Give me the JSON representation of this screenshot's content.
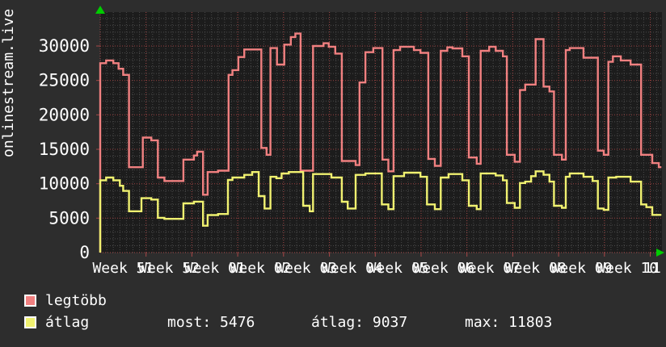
{
  "window": {
    "background": "#2d2d2d",
    "plot_background": "#1c1c1c"
  },
  "colors": {
    "text": "#ffffff",
    "grid_minor": "#4a4a4a",
    "grid_major": "#9c4040",
    "axis": "#a84747",
    "arrow": "#00cc00",
    "series_legtobb": "#f08080",
    "series_atlag": "#f0f170"
  },
  "y_axis_title": "onlinestream.live",
  "legend": {
    "items": [
      {
        "label": "legtöbb",
        "color": "#f08080"
      },
      {
        "label": "átlag",
        "color": "#f0f170"
      }
    ],
    "stats": {
      "most": "most: 5476",
      "atlag": "átlag: 9037",
      "max": "max: 11803"
    }
  },
  "chart_data": {
    "type": "line",
    "style": "rrdtool-step",
    "title": "",
    "ylabel": "onlinestream.live",
    "xlabel": "",
    "grid": true,
    "ylim": [
      0,
      34900
    ],
    "y_ticks": [
      0,
      5000,
      10000,
      15000,
      20000,
      25000,
      30000
    ],
    "y_minor_step": 1000,
    "x_week_labels": [
      "Week 51",
      "Week 52",
      "Week 01",
      "Week 02",
      "Week 03",
      "Week 04",
      "Week 05",
      "Week 06",
      "Week 07",
      "Week 08",
      "Week 09",
      "Week 10"
    ],
    "x_edge_label": "11",
    "x_unit": "days_since_start_week51",
    "summary": {
      "most": 5476,
      "atlag": 9037,
      "max": 11803
    },
    "series": [
      {
        "name": "legtöbb",
        "color": "#f08080",
        "points": [
          [
            0,
            27500
          ],
          [
            0.9,
            27900
          ],
          [
            2.0,
            27500
          ],
          [
            2.8,
            26700
          ],
          [
            3.5,
            25800
          ],
          [
            4.4,
            12400
          ],
          [
            6.5,
            16700
          ],
          [
            7.8,
            16300
          ],
          [
            8.8,
            10900
          ],
          [
            9.8,
            10400
          ],
          [
            12.7,
            13500
          ],
          [
            14.3,
            14100
          ],
          [
            14.8,
            14650
          ],
          [
            15.7,
            8400
          ],
          [
            16.4,
            11700
          ],
          [
            18.0,
            11900
          ],
          [
            19.6,
            25800
          ],
          [
            20.2,
            26500
          ],
          [
            21.1,
            28400
          ],
          [
            22.0,
            29500
          ],
          [
            24.6,
            15200
          ],
          [
            25.4,
            14200
          ],
          [
            26.0,
            29700
          ],
          [
            27.0,
            27300
          ],
          [
            28.1,
            30200
          ],
          [
            29.1,
            31300
          ],
          [
            29.8,
            31800
          ],
          [
            30.6,
            11900
          ],
          [
            32.5,
            30000
          ],
          [
            34.1,
            30400
          ],
          [
            34.9,
            29900
          ],
          [
            35.9,
            28900
          ],
          [
            36.9,
            13300
          ],
          [
            39.0,
            12700
          ],
          [
            39.6,
            24700
          ],
          [
            40.5,
            29100
          ],
          [
            41.7,
            29700
          ],
          [
            43.1,
            13500
          ],
          [
            44.0,
            11800
          ],
          [
            44.8,
            29400
          ],
          [
            45.8,
            29900
          ],
          [
            47.9,
            29400
          ],
          [
            48.9,
            29000
          ],
          [
            50.1,
            13600
          ],
          [
            51.1,
            12600
          ],
          [
            52.0,
            29300
          ],
          [
            53.0,
            29800
          ],
          [
            53.8,
            29650
          ],
          [
            55.3,
            28500
          ],
          [
            56.3,
            13800
          ],
          [
            57.5,
            12900
          ],
          [
            58.1,
            29300
          ],
          [
            59.4,
            29900
          ],
          [
            60.4,
            29300
          ],
          [
            61.5,
            28500
          ],
          [
            62.1,
            14200
          ],
          [
            63.3,
            13200
          ],
          [
            64.1,
            23600
          ],
          [
            64.9,
            24400
          ],
          [
            66.5,
            31000
          ],
          [
            67.7,
            24100
          ],
          [
            68.6,
            23400
          ],
          [
            69.3,
            14200
          ],
          [
            70.5,
            13500
          ],
          [
            71.1,
            29400
          ],
          [
            71.7,
            29700
          ],
          [
            73.8,
            28300
          ],
          [
            76.0,
            14800
          ],
          [
            76.9,
            14200
          ],
          [
            77.6,
            27700
          ],
          [
            78.3,
            28500
          ],
          [
            79.5,
            27900
          ],
          [
            81.0,
            27300
          ],
          [
            82.6,
            14200
          ],
          [
            84.3,
            13000
          ],
          [
            85.3,
            12400
          ],
          [
            85.7,
            12400
          ]
        ]
      },
      {
        "name": "átlag",
        "color": "#f0f170",
        "points": [
          [
            0,
            10500
          ],
          [
            0.9,
            10900
          ],
          [
            2.0,
            10500
          ],
          [
            3.0,
            9700
          ],
          [
            3.5,
            8950
          ],
          [
            4.4,
            6000
          ],
          [
            6.3,
            7900
          ],
          [
            7.8,
            7700
          ],
          [
            8.8,
            5050
          ],
          [
            9.8,
            4900
          ],
          [
            12.7,
            7150
          ],
          [
            14.3,
            7400
          ],
          [
            15.7,
            3900
          ],
          [
            16.4,
            5450
          ],
          [
            18.0,
            5600
          ],
          [
            19.5,
            10550
          ],
          [
            20.2,
            10900
          ],
          [
            22.0,
            11280
          ],
          [
            23.2,
            11700
          ],
          [
            24.2,
            8200
          ],
          [
            25.1,
            6400
          ],
          [
            26.0,
            11000
          ],
          [
            26.9,
            10800
          ],
          [
            27.7,
            11480
          ],
          [
            28.8,
            11700
          ],
          [
            31.0,
            6800
          ],
          [
            32.0,
            6000
          ],
          [
            32.5,
            11400
          ],
          [
            35.3,
            10900
          ],
          [
            36.9,
            7380
          ],
          [
            37.8,
            6400
          ],
          [
            39.0,
            11280
          ],
          [
            40.5,
            11500
          ],
          [
            43.0,
            7000
          ],
          [
            44.0,
            6300
          ],
          [
            44.8,
            11100
          ],
          [
            46.4,
            11600
          ],
          [
            48.9,
            11000
          ],
          [
            49.9,
            7000
          ],
          [
            51.1,
            6300
          ],
          [
            52.0,
            10900
          ],
          [
            53.2,
            11400
          ],
          [
            55.3,
            10500
          ],
          [
            56.3,
            6800
          ],
          [
            57.5,
            6300
          ],
          [
            58.1,
            11500
          ],
          [
            60.4,
            11200
          ],
          [
            61.5,
            10500
          ],
          [
            62.1,
            7200
          ],
          [
            63.3,
            6500
          ],
          [
            64.1,
            10100
          ],
          [
            64.9,
            10300
          ],
          [
            65.8,
            11100
          ],
          [
            66.5,
            11800
          ],
          [
            67.7,
            11300
          ],
          [
            68.6,
            10300
          ],
          [
            69.3,
            6800
          ],
          [
            70.5,
            6500
          ],
          [
            71.1,
            11000
          ],
          [
            71.7,
            11500
          ],
          [
            73.8,
            11000
          ],
          [
            75.2,
            10400
          ],
          [
            76.0,
            6400
          ],
          [
            76.9,
            6200
          ],
          [
            77.6,
            10900
          ],
          [
            78.8,
            11000
          ],
          [
            81.0,
            10300
          ],
          [
            82.6,
            7000
          ],
          [
            83.4,
            6600
          ],
          [
            84.3,
            5476
          ],
          [
            85.7,
            5476
          ]
        ]
      }
    ]
  }
}
